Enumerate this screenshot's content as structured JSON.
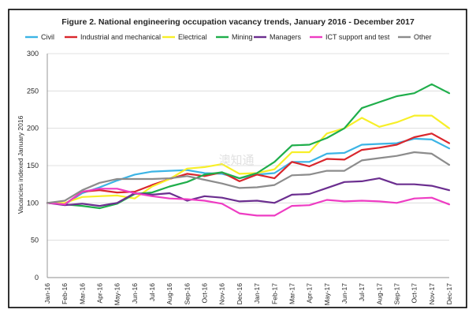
{
  "chart_data": {
    "type": "line",
    "title": "Figure 2. National engineering occupation vacancy trends, January 2016 - December 2017",
    "xlabel": "",
    "ylabel": "Vacancies indexed January 2016",
    "ylim": [
      0,
      300
    ],
    "yticks": [
      0,
      50,
      100,
      150,
      200,
      250,
      300
    ],
    "grid": true,
    "legend_position": "top",
    "categories": [
      "Jan-16",
      "Feb-16",
      "Mar-16",
      "Apr-16",
      "May-16",
      "Jun-16",
      "Jul-16",
      "Aug-16",
      "Sep-16",
      "Oct-16",
      "Nov-16",
      "Dec-16",
      "Jan-17",
      "Feb-17",
      "Mar-17",
      "Apr-17",
      "May-17",
      "Jun-17",
      "Jul-17",
      "Aug-17",
      "Sep-17",
      "Oct-17",
      "Nov-17",
      "Dec-17"
    ],
    "series": [
      {
        "name": "Civil",
        "color": "#3cb4e5",
        "values": [
          100,
          98,
          113,
          121,
          130,
          138,
          142,
          143,
          144,
          140,
          139,
          133,
          138,
          140,
          155,
          155,
          166,
          167,
          178,
          179,
          180,
          186,
          185,
          173
        ]
      },
      {
        "name": "Industrial and mechanical",
        "color": "#d9262c",
        "values": [
          100,
          98,
          115,
          117,
          114,
          115,
          124,
          132,
          139,
          136,
          141,
          129,
          138,
          133,
          155,
          149,
          159,
          158,
          171,
          174,
          178,
          188,
          193,
          180
        ]
      },
      {
        "name": "Electrical",
        "color": "#f7ef28",
        "values": [
          100,
          100,
          108,
          109,
          110,
          106,
          122,
          132,
          146,
          148,
          152,
          139,
          140,
          145,
          168,
          168,
          193,
          200,
          214,
          202,
          208,
          217,
          217,
          200
        ]
      },
      {
        "name": "Mining",
        "color": "#1fae4b",
        "values": [
          100,
          98,
          96,
          93,
          99,
          112,
          114,
          122,
          128,
          138,
          141,
          133,
          140,
          155,
          177,
          178,
          187,
          200,
          227,
          235,
          243,
          247,
          259,
          247
        ]
      },
      {
        "name": "Managers",
        "color": "#6b2e8f",
        "values": [
          100,
          97,
          99,
          96,
          100,
          113,
          111,
          113,
          103,
          109,
          107,
          102,
          103,
          100,
          111,
          112,
          120,
          128,
          129,
          133,
          125,
          125,
          123,
          117
        ]
      },
      {
        "name": "ICT support and test",
        "color": "#ee3cc3",
        "values": [
          100,
          98,
          115,
          119,
          119,
          113,
          109,
          106,
          105,
          103,
          99,
          86,
          83,
          83,
          96,
          97,
          104,
          102,
          103,
          102,
          100,
          106,
          107,
          98
        ]
      },
      {
        "name": "Other",
        "color": "#8c8c8c",
        "values": [
          100,
          103,
          117,
          127,
          132,
          132,
          132,
          133,
          136,
          131,
          126,
          120,
          121,
          124,
          137,
          138,
          143,
          143,
          157,
          160,
          163,
          168,
          166,
          151
        ]
      }
    ]
  },
  "watermark": "澳知通"
}
